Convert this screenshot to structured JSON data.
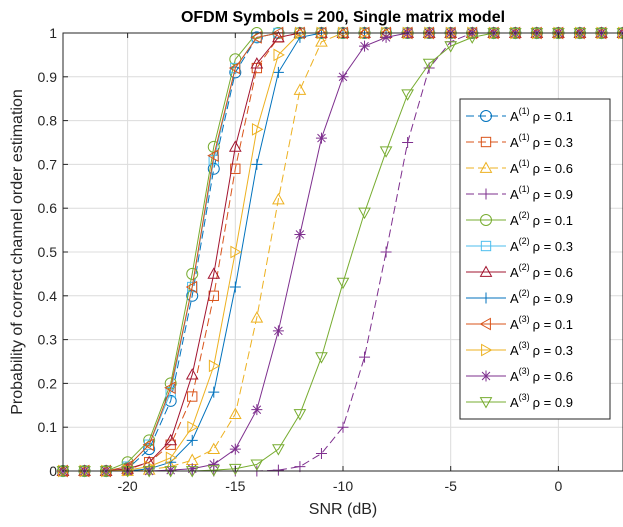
{
  "chart_data": {
    "type": "line",
    "title": "OFDM Symbols = 200, Single matrix model",
    "xlabel": "SNR (dB)",
    "ylabel": "Probability of correct channel order estimation",
    "xlim": [
      -23,
      3
    ],
    "ylim": [
      0,
      1
    ],
    "grid": true,
    "legend_position": "right",
    "x_ticks": [
      -20,
      -15,
      -10,
      -5,
      0
    ],
    "x_tick_labels": [
      "-20",
      "-15",
      "-10",
      "-5",
      "0"
    ],
    "y_ticks": [
      0,
      0.1,
      0.2,
      0.3,
      0.4,
      0.5,
      0.6,
      0.7,
      0.8,
      0.9,
      1
    ],
    "y_tick_labels": [
      "0",
      "0.1",
      "0.2",
      "0.3",
      "0.4",
      "0.5",
      "0.6",
      "0.7",
      "0.8",
      "0.9",
      "1"
    ],
    "x": [
      -23,
      -22,
      -21,
      -20,
      -19,
      -18,
      -17,
      -16,
      -15,
      -14,
      -13,
      -12,
      -11,
      -10,
      -9,
      -8,
      -7,
      -6,
      -5,
      -4,
      -3,
      -2,
      -1,
      0,
      1,
      2,
      3
    ],
    "series": [
      {
        "name": "A(1) ρ = 0.1",
        "matrix": "(1)",
        "rho": "ρ = 0.1",
        "color": "#0072BD",
        "dash": "8,4",
        "marker": "circle",
        "values": [
          0,
          0,
          0,
          0.005,
          0.05,
          0.16,
          0.4,
          0.69,
          0.91,
          0.99,
          1,
          1,
          1,
          1,
          1,
          1,
          1,
          1,
          1,
          1,
          1,
          1,
          1,
          1,
          1,
          1,
          1
        ]
      },
      {
        "name": "A(1) ρ = 0.3",
        "matrix": "(1)",
        "rho": "ρ = 0.3",
        "color": "#D95319",
        "dash": "8,4",
        "marker": "square",
        "values": [
          0,
          0,
          0,
          0.003,
          0.02,
          0.06,
          0.17,
          0.4,
          0.69,
          0.92,
          0.99,
          1,
          1,
          1,
          1,
          1,
          1,
          1,
          1,
          1,
          1,
          1,
          1,
          1,
          1,
          1,
          1
        ]
      },
      {
        "name": "A(1) ρ = 0.6",
        "matrix": "(1)",
        "rho": "ρ = 0.6",
        "color": "#EDB120",
        "dash": "8,4",
        "marker": "triangle-up",
        "values": [
          0,
          0,
          0,
          0,
          0.003,
          0.01,
          0.025,
          0.05,
          0.13,
          0.35,
          0.62,
          0.87,
          0.98,
          1,
          1,
          1,
          1,
          1,
          1,
          1,
          1,
          1,
          1,
          1,
          1,
          1,
          1
        ]
      },
      {
        "name": "A(1) ρ = 0.9",
        "matrix": "(1)",
        "rho": "ρ = 0.9",
        "color": "#7E2F8E",
        "dash": "8,4",
        "marker": "plus",
        "values": [
          0,
          0,
          0,
          0,
          0,
          0,
          0,
          0,
          0,
          0,
          0.002,
          0.01,
          0.04,
          0.1,
          0.26,
          0.5,
          0.75,
          0.92,
          0.98,
          1,
          1,
          1,
          1,
          1,
          1,
          1,
          1
        ]
      },
      {
        "name": "A(2) ρ = 0.1",
        "matrix": "(2)",
        "rho": "ρ = 0.1",
        "color": "#77AC30",
        "dash": "",
        "marker": "circle",
        "values": [
          0,
          0,
          0,
          0.02,
          0.07,
          0.2,
          0.45,
          0.74,
          0.94,
          1,
          1,
          1,
          1,
          1,
          1,
          1,
          1,
          1,
          1,
          1,
          1,
          1,
          1,
          1,
          1,
          1,
          1
        ]
      },
      {
        "name": "A(2) ρ = 0.3",
        "matrix": "(2)",
        "rho": "ρ = 0.3",
        "color": "#4DBEEE",
        "dash": "",
        "marker": "square",
        "values": [
          0,
          0,
          0,
          0.01,
          0.06,
          0.18,
          0.42,
          0.71,
          0.92,
          0.99,
          1,
          1,
          1,
          1,
          1,
          1,
          1,
          1,
          1,
          1,
          1,
          1,
          1,
          1,
          1,
          1,
          1
        ]
      },
      {
        "name": "A(2) ρ = 0.6",
        "matrix": "(2)",
        "rho": "ρ = 0.6",
        "color": "#A2142F",
        "dash": "",
        "marker": "triangle-up",
        "values": [
          0,
          0,
          0,
          0.005,
          0.02,
          0.07,
          0.22,
          0.45,
          0.74,
          0.93,
          0.99,
          1,
          1,
          1,
          1,
          1,
          1,
          1,
          1,
          1,
          1,
          1,
          1,
          1,
          1,
          1,
          1
        ]
      },
      {
        "name": "A(2) ρ = 0.9",
        "matrix": "(2)",
        "rho": "ρ = 0.9",
        "color": "#0072BD",
        "dash": "",
        "marker": "plus",
        "values": [
          0,
          0,
          0,
          0,
          0.005,
          0.02,
          0.07,
          0.18,
          0.42,
          0.7,
          0.91,
          0.99,
          1,
          1,
          1,
          1,
          1,
          1,
          1,
          1,
          1,
          1,
          1,
          1,
          1,
          1,
          1
        ]
      },
      {
        "name": "A(3) ρ = 0.1",
        "matrix": "(3)",
        "rho": "ρ = 0.1",
        "color": "#D95319",
        "dash": "",
        "marker": "triangle-left",
        "values": [
          0,
          0,
          0,
          0.01,
          0.06,
          0.19,
          0.42,
          0.72,
          0.92,
          0.99,
          1,
          1,
          1,
          1,
          1,
          1,
          1,
          1,
          1,
          1,
          1,
          1,
          1,
          1,
          1,
          1,
          1
        ]
      },
      {
        "name": "A(3) ρ = 0.3",
        "matrix": "(3)",
        "rho": "ρ = 0.3",
        "color": "#EDB120",
        "dash": "",
        "marker": "triangle-right",
        "values": [
          0,
          0,
          0,
          0.002,
          0.01,
          0.03,
          0.1,
          0.24,
          0.5,
          0.78,
          0.95,
          1,
          1,
          1,
          1,
          1,
          1,
          1,
          1,
          1,
          1,
          1,
          1,
          1,
          1,
          1,
          1
        ]
      },
      {
        "name": "A(3) ρ = 0.6",
        "matrix": "(3)",
        "rho": "ρ = 0.6",
        "color": "#7E2F8E",
        "dash": "",
        "marker": "asterisk",
        "values": [
          0,
          0,
          0,
          0,
          0,
          0.002,
          0.005,
          0.015,
          0.05,
          0.14,
          0.32,
          0.54,
          0.76,
          0.9,
          0.97,
          0.99,
          1,
          1,
          1,
          1,
          1,
          1,
          1,
          1,
          1,
          1,
          1
        ]
      },
      {
        "name": "A(3) ρ = 0.9",
        "matrix": "(3)",
        "rho": "ρ = 0.9",
        "color": "#77AC30",
        "dash": "",
        "marker": "triangle-down",
        "values": [
          0,
          0,
          0,
          0,
          0,
          0,
          0,
          0.002,
          0.005,
          0.015,
          0.05,
          0.13,
          0.26,
          0.43,
          0.59,
          0.73,
          0.86,
          0.93,
          0.97,
          0.99,
          1,
          1,
          1,
          1,
          1,
          1,
          1
        ]
      }
    ]
  }
}
